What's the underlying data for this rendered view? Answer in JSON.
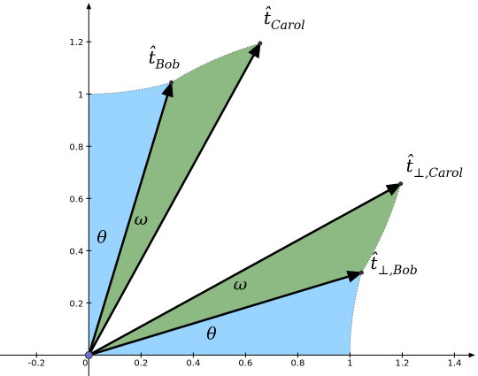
{
  "chart_data": {
    "type": "vector",
    "xlim": [
      -0.34,
      1.49
    ],
    "ylim": [
      -0.08,
      1.36
    ],
    "xticks": [
      -0.2,
      0,
      0.2,
      0.4,
      0.6,
      0.8,
      1,
      1.2,
      1.4
    ],
    "yticks": [
      0.2,
      0.4,
      0.6,
      0.8,
      1,
      1.2
    ],
    "region_color": "#99d3ff",
    "wedge_color": "#8dba82",
    "vector_color": "#000000",
    "vectors": [
      {
        "label": "t̂",
        "sub": "Bob",
        "x": 0.316,
        "y": 1.044
      },
      {
        "label": "t̂",
        "sub": "Carol",
        "x": 0.656,
        "y": 1.194
      },
      {
        "label": "t̂",
        "sub": "⊥,Bob",
        "x": 1.044,
        "y": 0.316
      },
      {
        "label": "t̂",
        "sub": "⊥,Carol",
        "x": 1.194,
        "y": 0.656
      }
    ],
    "angle_labels": [
      "θ",
      "ω",
      "ω",
      "θ"
    ]
  }
}
